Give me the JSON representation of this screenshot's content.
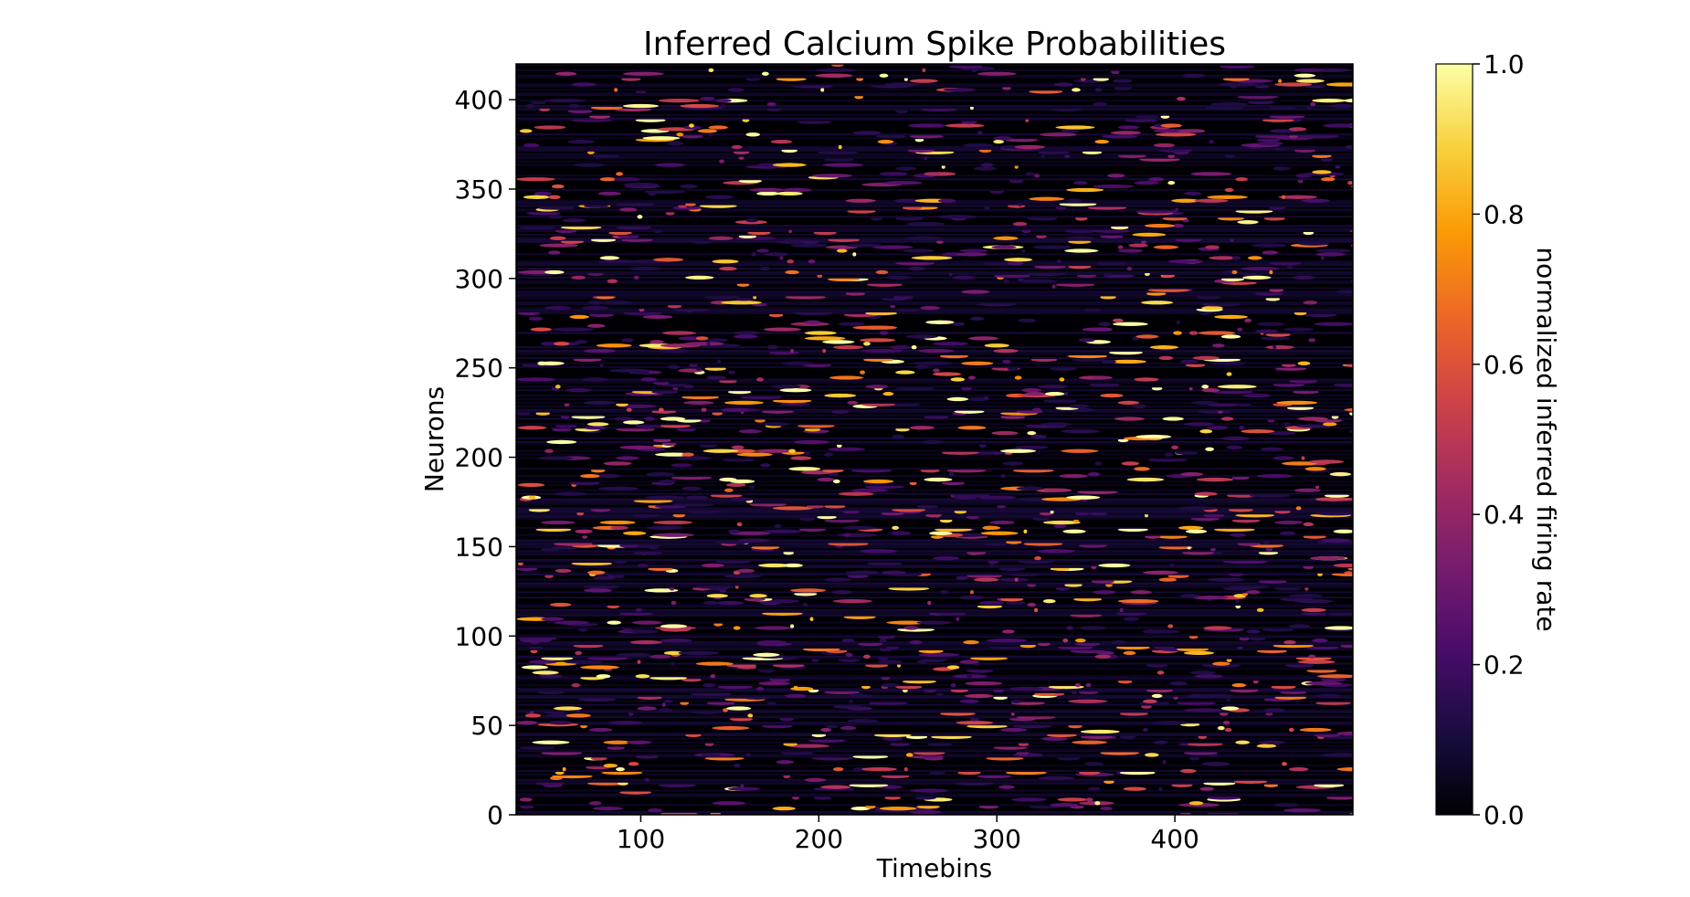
{
  "chart_data": {
    "type": "heatmap",
    "title": "Inferred Calcium Spike Probabilities",
    "xlabel": "Timebins",
    "ylabel": "Neurons",
    "xlim": [
      30,
      500
    ],
    "ylim": [
      0,
      420
    ],
    "xticks": [
      100,
      200,
      300,
      400
    ],
    "yticks": [
      0,
      50,
      100,
      150,
      200,
      250,
      300,
      350,
      400
    ],
    "colormap": "inferno",
    "background_color": "#000004",
    "colorbar": {
      "label": "normalized inferred firing rate",
      "range": [
        0.0,
        1.0
      ],
      "ticks": [
        "0.0",
        "0.2",
        "0.4",
        "0.6",
        "0.8",
        "1.0"
      ],
      "colors": [
        "#000004",
        "#1b0c41",
        "#4a0c6b",
        "#781c6d",
        "#a52c60",
        "#cf4446",
        "#ed6925",
        "#fb9b06",
        "#f7d13d",
        "#fcffa4"
      ]
    },
    "grid": false,
    "n_neurons": 420,
    "n_timebins": 470,
    "note_values": "sparse random spike events, values 0-1"
  }
}
